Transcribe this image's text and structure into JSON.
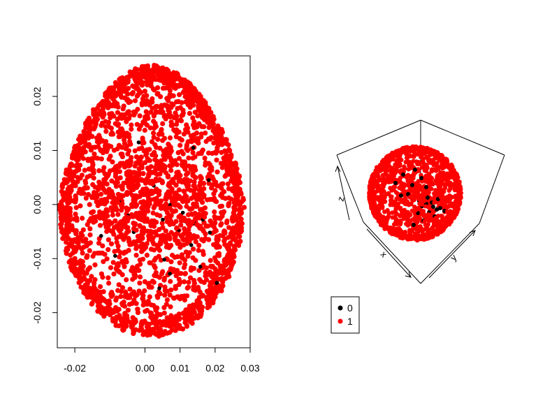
{
  "chart_data": [
    {
      "type": "scatter",
      "title": "",
      "xlabel": "",
      "ylabel": "",
      "xlim": [
        -0.025,
        0.03
      ],
      "ylim": [
        -0.0265,
        0.0275
      ],
      "grid": false,
      "xticks": [
        -0.02,
        0.0,
        0.01,
        0.02,
        0.03
      ],
      "yticks": [
        -0.02,
        -0.01,
        0.0,
        0.01,
        0.02
      ],
      "xtick_labels": [
        "-0.02",
        "0.00",
        "0.01",
        "0.02",
        "0.03"
      ],
      "ytick_labels": [
        "-0.02",
        "-0.01",
        "0.00",
        "0.01",
        "0.02"
      ],
      "series": [
        {
          "name": "1",
          "color": "#ff0000",
          "shape": "egg-shaped point cloud",
          "x_range": [
            -0.0245,
            0.0285
          ],
          "y_range": [
            -0.0245,
            0.0258
          ]
        },
        {
          "name": "0",
          "color": "#000000",
          "points": [
            [
              0.0072,
              -0.0001
            ],
            [
              0.0095,
              -0.0048
            ],
            [
              0.0118,
              -0.0032
            ],
            [
              0.0142,
              -0.0035
            ],
            [
              0.0165,
              -0.0028
            ],
            [
              -0.0072,
              0.0008
            ],
            [
              -0.0032,
              -0.0051
            ],
            [
              0.0051,
              -0.0028
            ],
            [
              0.0132,
              -0.0075
            ],
            [
              0.0071,
              -0.0128
            ],
            [
              0.0041,
              -0.0155
            ],
            [
              0.0055,
              -0.0102
            ],
            [
              -0.0018,
              0.0115
            ],
            [
              0.0138,
              0.0105
            ],
            [
              -0.0125,
              -0.0058
            ],
            [
              0.0182,
              0.0045
            ],
            [
              0.0095,
              0.0015
            ],
            [
              -0.0048,
              -0.0021
            ],
            [
              0.0158,
              -0.0115
            ],
            [
              0.0025,
              0.0035
            ],
            [
              0.0108,
              -0.0015
            ],
            [
              0.0205,
              -0.0145
            ],
            [
              -0.0085,
              -0.0095
            ],
            [
              0.0185,
              -0.0052
            ]
          ]
        }
      ]
    },
    {
      "type": "scatter",
      "title": "",
      "projection": "3d",
      "axis_labels": {
        "x": "x",
        "y": "y",
        "z": "z"
      },
      "series": [
        {
          "name": "1",
          "color": "#ff0000",
          "shape": "sphere point cloud"
        },
        {
          "name": "0",
          "color": "#000000",
          "shape": "small cluster inside sphere"
        }
      ],
      "legend": {
        "placement": "bottom-left",
        "entries": [
          {
            "label": "0",
            "color": "#000000"
          },
          {
            "label": "1",
            "color": "#ff0000"
          }
        ]
      }
    }
  ]
}
